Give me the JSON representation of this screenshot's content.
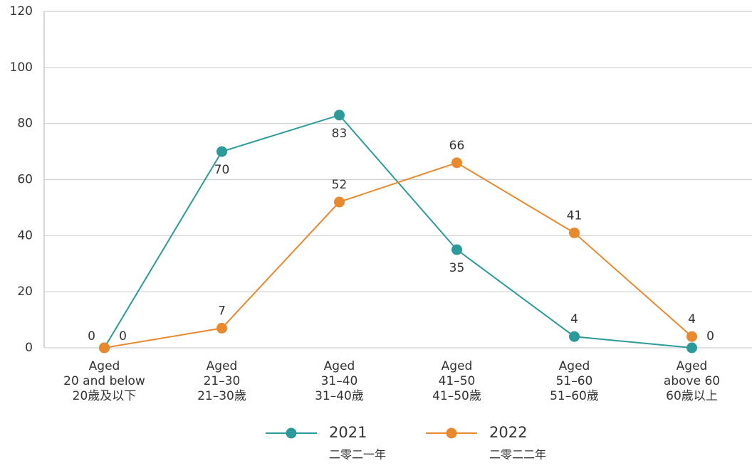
{
  "chart_data": {
    "type": "line",
    "categories": [
      [
        "Aged",
        "20 and below",
        "20歲及以下"
      ],
      [
        "Aged",
        "21–30",
        "21–30歲"
      ],
      [
        "Aged",
        "31–40",
        "31–40歲"
      ],
      [
        "Aged",
        "41–50",
        "41–50歲"
      ],
      [
        "Aged",
        "51–60",
        "51–60歲"
      ],
      [
        "Aged",
        "above 60",
        "60歲以上"
      ]
    ],
    "series": [
      {
        "name": "2021",
        "name_alt": "二零二一年",
        "color": "#2a9a9a",
        "values": [
          0,
          70,
          83,
          35,
          4,
          0
        ]
      },
      {
        "name": "2022",
        "name_alt": "二零二二年",
        "color": "#e8892e",
        "values": [
          0,
          7,
          52,
          66,
          41,
          4
        ]
      }
    ],
    "ylim": [
      0,
      120
    ],
    "yticks": [
      0,
      20,
      40,
      60,
      80,
      100,
      120
    ],
    "grid": true,
    "legend": "bottom"
  }
}
